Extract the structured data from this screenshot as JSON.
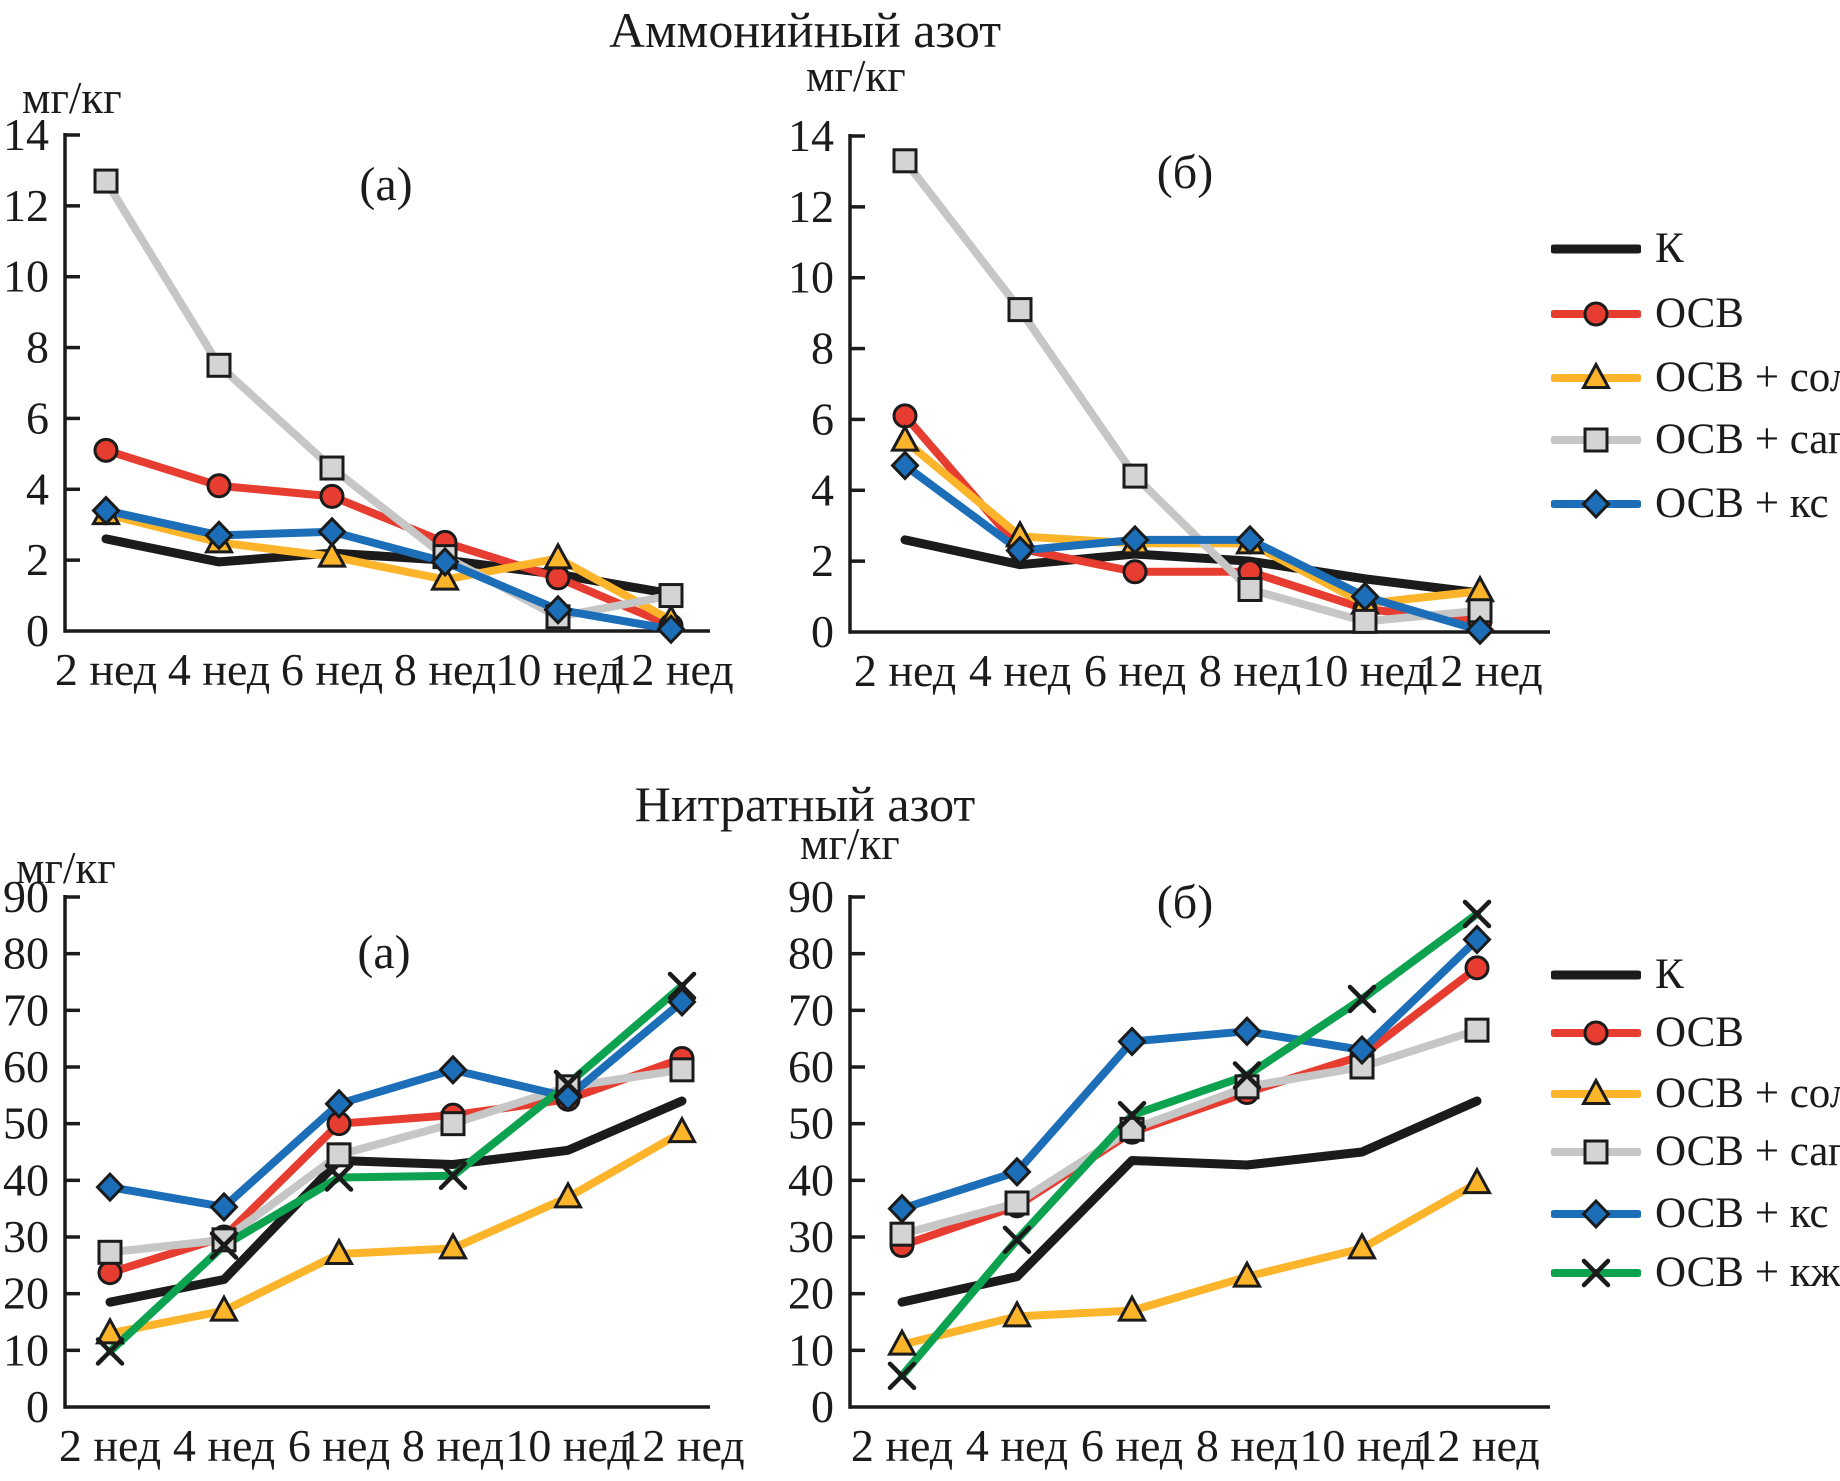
{
  "titles": {
    "ammonium": "Аммонийный азот",
    "nitrate": "Нитратный азот"
  },
  "legends": {
    "top": [
      "К",
      "ОСВ",
      "ОСВ + сол",
      "ОСВ + сап",
      "ОСВ + кс"
    ],
    "bottom": [
      "К",
      "ОСВ",
      "ОСВ + сол",
      "ОСВ + сап",
      "ОСВ + кс",
      "ОСВ + кж"
    ]
  },
  "colors": {
    "black": "#1b1b1b",
    "red": "#e73c30",
    "yellow": "#fcb52b",
    "gray_line": "#c6c6c6",
    "gray_fill": "#d4d4d4",
    "blue": "#1b6eb7",
    "green": "#0ca24f",
    "marker_stroke": "#1b1b1b"
  },
  "chart_data": [
    {
      "id": "ammonium-a",
      "type": "line",
      "panel_label": "(а)",
      "title": "Аммонийный азот",
      "ylabel": "мг/кг",
      "ylim": [
        0,
        14
      ],
      "yticks": [
        0,
        2,
        4,
        6,
        8,
        10,
        12,
        14
      ],
      "grid": false,
      "categories": [
        "2 нед",
        "4 нед",
        "6 нед",
        "8 нед",
        "10 нед",
        "12 нед"
      ],
      "series": [
        {
          "name": "К",
          "color": "#1b1b1b",
          "marker": "none",
          "values": [
            2.6,
            1.95,
            2.2,
            2.0,
            1.6,
            1.05
          ]
        },
        {
          "name": "ОСВ",
          "color": "#e73c30",
          "marker": "circle",
          "values": [
            5.1,
            4.1,
            3.8,
            2.5,
            1.5,
            0.15
          ]
        },
        {
          "name": "ОСВ + сол",
          "color": "#fcb52b",
          "marker": "triangle",
          "values": [
            3.3,
            2.5,
            2.1,
            1.45,
            2.05,
            0.3
          ]
        },
        {
          "name": "ОСВ + сап",
          "color": "#c6c6c6",
          "marker": "square",
          "marker_fill": "#d4d4d4",
          "values": [
            12.7,
            7.5,
            4.6,
            2.1,
            0.4,
            1.0
          ]
        },
        {
          "name": "ОСВ + кс",
          "color": "#1b6eb7",
          "marker": "diamond",
          "values": [
            3.4,
            2.7,
            2.8,
            1.95,
            0.6,
            0.05
          ]
        }
      ]
    },
    {
      "id": "ammonium-b",
      "type": "line",
      "panel_label": "(б)",
      "title": "Аммонийный азот",
      "ylabel": "мг/кг",
      "ylim": [
        0,
        14
      ],
      "yticks": [
        0,
        2,
        4,
        6,
        8,
        10,
        12,
        14
      ],
      "grid": false,
      "categories": [
        "2 нед",
        "4 нед",
        "6 нед",
        "8 нед",
        "10 нед",
        "12 нед"
      ],
      "series": [
        {
          "name": "К",
          "color": "#1b1b1b",
          "marker": "none",
          "values": [
            2.6,
            1.9,
            2.2,
            2.0,
            1.5,
            1.1
          ]
        },
        {
          "name": "ОСВ",
          "color": "#e73c30",
          "marker": "circle",
          "values": [
            6.1,
            2.35,
            1.7,
            1.7,
            0.65,
            0.3
          ]
        },
        {
          "name": "ОСВ + сол",
          "color": "#fcb52b",
          "marker": "triangle",
          "values": [
            5.4,
            2.7,
            2.5,
            2.5,
            0.8,
            1.15
          ]
        },
        {
          "name": "ОСВ + сап",
          "color": "#c6c6c6",
          "marker": "square",
          "marker_fill": "#d4d4d4",
          "values": [
            13.3,
            9.1,
            4.4,
            1.2,
            0.3,
            0.6
          ]
        },
        {
          "name": "ОСВ + кс",
          "color": "#1b6eb7",
          "marker": "diamond",
          "values": [
            4.7,
            2.3,
            2.6,
            2.6,
            1.0,
            0.05
          ]
        }
      ]
    },
    {
      "id": "nitrate-a",
      "type": "line",
      "panel_label": "(а)",
      "title": "Нитратный азот",
      "ylabel": "мг/кг",
      "ylim": [
        0,
        90
      ],
      "yticks": [
        0,
        10,
        20,
        30,
        40,
        50,
        60,
        70,
        80,
        90
      ],
      "grid": false,
      "categories": [
        "2 нед",
        "4 нед",
        "6 нед",
        "8 нед",
        "10 нед",
        "12 нед"
      ],
      "series": [
        {
          "name": "К",
          "color": "#1b1b1b",
          "marker": "none",
          "values": [
            18.5,
            22.5,
            43.5,
            42.8,
            45.3,
            54
          ]
        },
        {
          "name": "ОСВ",
          "color": "#e73c30",
          "marker": "circle",
          "values": [
            23.7,
            30,
            50,
            51.5,
            54.3,
            61.5
          ]
        },
        {
          "name": "ОСВ + сол",
          "color": "#fcb52b",
          "marker": "triangle",
          "values": [
            13,
            17,
            27,
            28,
            37,
            48.5
          ]
        },
        {
          "name": "ОСВ + сап",
          "color": "#c6c6c6",
          "marker": "square",
          "marker_fill": "#d4d4d4",
          "values": [
            27.3,
            29.5,
            44.5,
            50,
            56.5,
            59.5
          ]
        },
        {
          "name": "ОСВ + кс",
          "color": "#1b6eb7",
          "marker": "diamond",
          "values": [
            38.8,
            35.3,
            53.5,
            59.5,
            54.7,
            71.5
          ]
        },
        {
          "name": "ОСВ + кж",
          "color": "#0ca24f",
          "marker": "x",
          "values": [
            9.8,
            28.5,
            40.5,
            40.8,
            57,
            74.3
          ]
        }
      ]
    },
    {
      "id": "nitrate-b",
      "type": "line",
      "panel_label": "(б)",
      "title": "Нитратный азот",
      "ylabel": "мг/кг",
      "ylim": [
        0,
        90
      ],
      "yticks": [
        0,
        10,
        20,
        30,
        40,
        50,
        60,
        70,
        80,
        90
      ],
      "grid": false,
      "categories": [
        "2 нед",
        "4 нед",
        "6 нед",
        "8 нед",
        "10 нед",
        "12 нед"
      ],
      "series": [
        {
          "name": "К",
          "color": "#1b1b1b",
          "marker": "none",
          "values": [
            18.5,
            23,
            43.5,
            42.7,
            45,
            54
          ]
        },
        {
          "name": "ОСВ",
          "color": "#e73c30",
          "marker": "circle",
          "values": [
            28.5,
            35.5,
            48.5,
            55.5,
            62,
            77.5
          ]
        },
        {
          "name": "ОСВ + сол",
          "color": "#fcb52b",
          "marker": "triangle",
          "values": [
            11,
            16,
            17,
            23,
            28,
            39.5
          ]
        },
        {
          "name": "ОСВ + сап",
          "color": "#c6c6c6",
          "marker": "square",
          "marker_fill": "#d4d4d4",
          "values": [
            30.5,
            36,
            49,
            56.5,
            60,
            66.5
          ]
        },
        {
          "name": "ОСВ + кс",
          "color": "#1b6eb7",
          "marker": "diamond",
          "values": [
            35,
            41.5,
            64.5,
            66.3,
            63,
            82.5
          ]
        },
        {
          "name": "ОСВ + кж",
          "color": "#0ca24f",
          "marker": "x",
          "values": [
            5.5,
            29.5,
            51.5,
            58.5,
            72,
            87
          ]
        }
      ]
    }
  ]
}
